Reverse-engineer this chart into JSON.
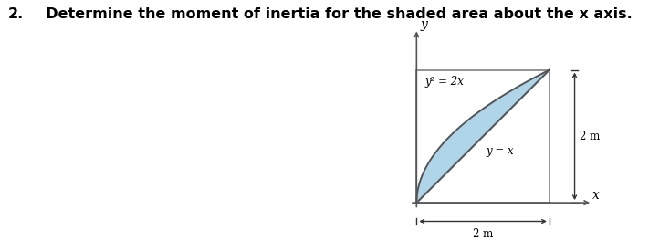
{
  "title_num": "2.",
  "title_text": "  Determine the moment of inertia for the shaded area about the x axis.",
  "title_fontsize": 11.5,
  "shaded_color": "#aed6e8",
  "shaded_alpha": 1.0,
  "curve_color": "#555555",
  "box_color": "#777777",
  "axis_color": "#555555",
  "dim_color": "#333333",
  "label_y2_2x": "y² = 2x",
  "label_y_x": "y = x",
  "label_2m_horiz": "2 m",
  "label_2m_vert": "2 m",
  "label_x_axis": "x",
  "label_y_axis": "y",
  "figsize": [
    7.11,
    2.75
  ],
  "dpi": 100
}
